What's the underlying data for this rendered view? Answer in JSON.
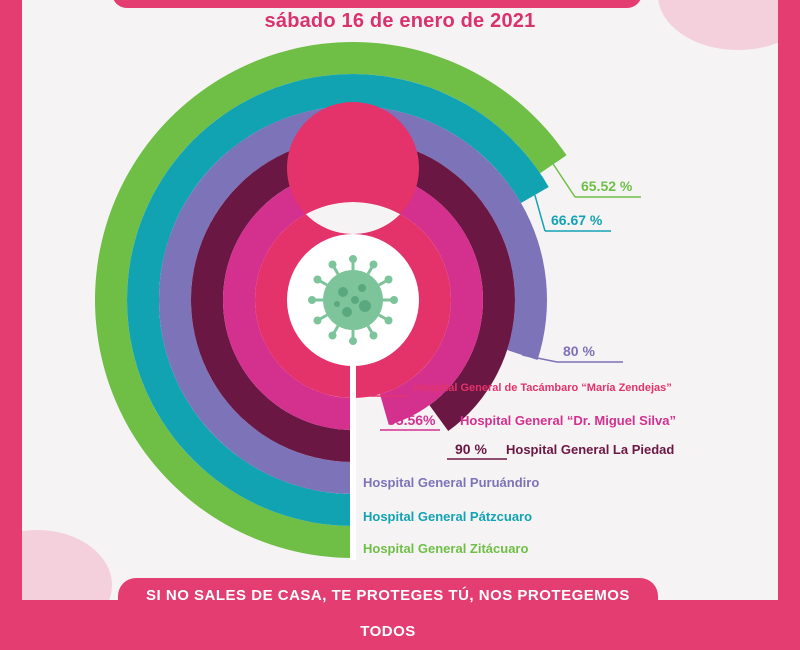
{
  "header": {
    "date": "sábado 16 de enero de 2021"
  },
  "footer": {
    "slogan": "SI NO SALES DE CASA, TE PROTEGES TÚ, NOS PROTEGEMOS TODOS"
  },
  "icons": {
    "center": "virus-icon"
  },
  "chart_data": {
    "type": "radial bar",
    "unit": "%",
    "max": 100,
    "series": [
      {
        "hospital": "Hospital General de Tacámbaro “María Zendejas”",
        "value": 100,
        "label": "100%",
        "color": "#e4326b"
      },
      {
        "hospital": "Hospital General “Dr. Miguel Silva”",
        "value": 95.56,
        "label": "95.56%",
        "color": "#d4318e"
      },
      {
        "hospital": "Hospital General La Piedad",
        "value": 90,
        "label": "90 %",
        "color": "#6b1744"
      },
      {
        "hospital": "Hospital General Puruándiro",
        "value": 80,
        "label": "80 %",
        "color": "#7c73b8"
      },
      {
        "hospital": "Hospital General Pátzcuaro",
        "value": 66.67,
        "label": "66.67 %",
        "color": "#12a3b3"
      },
      {
        "hospital": "Hospital General Zitácuaro",
        "value": 65.52,
        "label": "65.52 %",
        "color": "#6fbf47"
      }
    ]
  }
}
